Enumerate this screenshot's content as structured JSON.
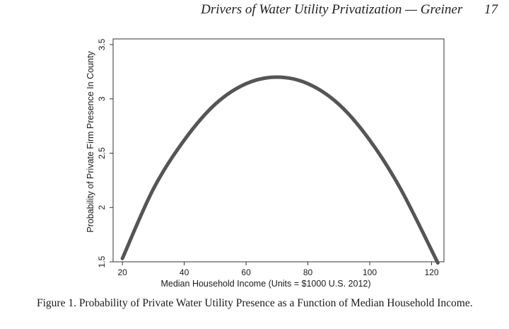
{
  "header": {
    "running_title": "Drivers of Water Utility Privatization — Greiner",
    "page_number": "17"
  },
  "figure": {
    "caption": "Figure 1.  Probability of Private Water Utility Presence as a Function of Median Household Income."
  },
  "chart_data": {
    "type": "line",
    "title": "",
    "xlabel": "Median Household Income (Units = $1000 U.S. 2012)",
    "ylabel": "Probability of Private Firm Presence In County",
    "xlim": [
      20,
      122
    ],
    "ylim": [
      1.5,
      3.5
    ],
    "x_ticks": [
      20,
      40,
      60,
      80,
      100,
      120
    ],
    "x_tick_labels": [
      "20",
      "40",
      "60",
      "80",
      "100",
      "120"
    ],
    "y_ticks": [
      1.5,
      2,
      2.5,
      3,
      3.5
    ],
    "y_tick_labels": [
      "1.5",
      "2",
      "2.5",
      "3",
      "3.5"
    ],
    "grid": false,
    "series": [
      {
        "x": [
          20,
          30,
          40,
          50,
          60,
          70,
          80,
          90,
          100,
          110,
          122
        ],
        "values": [
          1.53,
          2.17,
          2.62,
          2.95,
          3.14,
          3.2,
          3.14,
          2.95,
          2.62,
          2.17,
          1.49
        ],
        "color": "#555555"
      }
    ]
  }
}
